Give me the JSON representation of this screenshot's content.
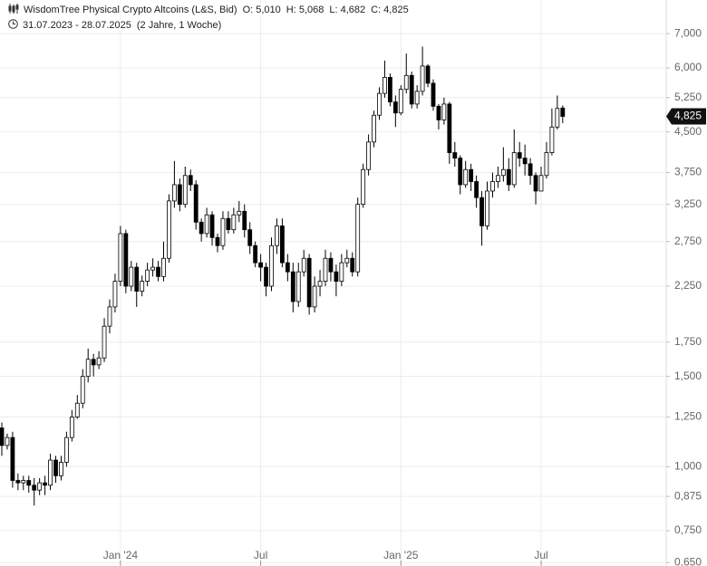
{
  "header": {
    "title": "WisdomTree Physical Crypto Altcoins (L&S, Bid)",
    "open": "O: 5,010",
    "high": "H: 5,068",
    "low": "L: 4,682",
    "close": "C: 4,825",
    "range": "31.07.2023 - 28.07.2025",
    "duration": "(2 Jahre, 1 Woche)"
  },
  "chart_data": {
    "type": "candlestick",
    "log_scale": true,
    "grid": true,
    "up_color": "#ffffff",
    "down_color": "#000000",
    "line_color": "#000000",
    "ylim": [
      0.64,
      8.14
    ],
    "yticks": [
      {
        "value": 0.65,
        "label": "0,650"
      },
      {
        "value": 0.75,
        "label": "0,750"
      },
      {
        "value": 0.875,
        "label": "0,875"
      },
      {
        "value": 1,
        "label": "1,000"
      },
      {
        "value": 1.25,
        "label": "1,250"
      },
      {
        "value": 1.5,
        "label": "1,500"
      },
      {
        "value": 1.75,
        "label": "1,750"
      },
      {
        "value": 2.25,
        "label": "2,250"
      },
      {
        "value": 2.75,
        "label": "2,750"
      },
      {
        "value": 3.25,
        "label": "3,250"
      },
      {
        "value": 3.75,
        "label": "3,750"
      },
      {
        "value": 4.5,
        "label": "4,500"
      },
      {
        "value": 5.25,
        "label": "5,250"
      },
      {
        "value": 6,
        "label": "6,000"
      },
      {
        "value": 7,
        "label": "7,000"
      }
    ],
    "categories": [
      null,
      null,
      null,
      null,
      null,
      null,
      null,
      null,
      null,
      null,
      null,
      null,
      null,
      null,
      null,
      null,
      null,
      null,
      null,
      null,
      null,
      null,
      "Jan '24",
      null,
      null,
      null,
      null,
      null,
      null,
      null,
      null,
      null,
      null,
      null,
      null,
      null,
      null,
      null,
      null,
      null,
      null,
      null,
      null,
      null,
      null,
      null,
      null,
      null,
      "Jul",
      null,
      null,
      null,
      null,
      null,
      null,
      null,
      null,
      null,
      null,
      null,
      null,
      null,
      null,
      null,
      null,
      null,
      null,
      null,
      null,
      null,
      null,
      null,
      null,
      null,
      "Jan '25",
      null,
      null,
      null,
      null,
      null,
      null,
      null,
      null,
      null,
      null,
      null,
      null,
      null,
      null,
      null,
      null,
      null,
      null,
      null,
      null,
      null,
      null,
      null,
      null,
      null,
      "Jul",
      null,
      null,
      null,
      null
    ],
    "open": [
      1.19,
      1.1,
      1.14,
      0.94,
      0.93,
      0.94,
      0.92,
      0.9,
      0.93,
      0.92,
      1.03,
      0.96,
      1.02,
      1.14,
      1.25,
      1.33,
      1.5,
      1.62,
      1.58,
      1.63,
      1.88,
      2.05,
      2.3,
      2.85,
      2.25,
      2.45,
      2.2,
      2.3,
      2.42,
      2.45,
      2.35,
      2.55,
      3.3,
      3.55,
      3.25,
      3.7,
      3.55,
      3.0,
      2.85,
      3.1,
      2.8,
      2.7,
      3.05,
      2.9,
      3.1,
      3.15,
      2.9,
      2.7,
      2.5,
      2.45,
      2.25,
      2.7,
      2.95,
      2.5,
      2.4,
      2.1,
      2.4,
      2.55,
      2.05,
      2.25,
      2.3,
      2.55,
      2.4,
      2.3,
      2.5,
      2.55,
      2.4,
      3.25,
      3.8,
      4.3,
      4.85,
      5.35,
      5.75,
      5.15,
      4.9,
      5.45,
      5.8,
      5.1,
      5.4,
      6.05,
      5.6,
      5.05,
      4.75,
      5.1,
      4.1,
      4.0,
      3.55,
      3.8,
      3.6,
      3.35,
      2.95,
      3.45,
      3.6,
      3.7,
      3.8,
      3.55,
      4.1,
      4.0,
      3.9,
      3.7,
      3.45,
      3.7,
      4.1,
      4.6,
      5.01
    ],
    "high": [
      1.22,
      1.16,
      1.17,
      0.97,
      0.96,
      0.96,
      0.95,
      0.95,
      0.96,
      1.06,
      1.05,
      1.05,
      1.17,
      1.29,
      1.38,
      1.55,
      1.7,
      1.66,
      1.68,
      1.95,
      2.12,
      2.38,
      2.95,
      2.9,
      2.52,
      2.5,
      2.36,
      2.5,
      2.55,
      2.52,
      2.75,
      3.4,
      3.95,
      3.65,
      3.85,
      3.8,
      3.62,
      3.05,
      3.2,
      3.15,
      2.85,
      3.15,
      3.15,
      3.2,
      3.3,
      3.25,
      3.0,
      2.75,
      2.6,
      2.5,
      2.8,
      3.05,
      3.05,
      2.6,
      2.5,
      2.5,
      2.65,
      2.6,
      2.35,
      2.42,
      2.65,
      2.62,
      2.48,
      2.6,
      2.65,
      2.62,
      3.35,
      3.9,
      4.45,
      4.95,
      5.5,
      6.2,
      5.85,
      5.3,
      5.55,
      6.4,
      5.9,
      5.55,
      6.6,
      6.1,
      5.7,
      5.1,
      5.25,
      5.15,
      4.3,
      4.05,
      3.95,
      3.9,
      3.7,
      3.45,
      3.6,
      3.75,
      3.85,
      4.2,
      4.0,
      4.55,
      4.3,
      4.25,
      4.0,
      3.75,
      3.85,
      4.3,
      5.0,
      5.3,
      5.068
    ],
    "low": [
      1.05,
      1.08,
      0.91,
      0.9,
      0.9,
      0.89,
      0.84,
      0.88,
      0.88,
      0.9,
      0.93,
      0.94,
      1.0,
      1.12,
      1.24,
      1.3,
      1.46,
      1.5,
      1.55,
      1.6,
      1.82,
      2.0,
      2.25,
      2.18,
      2.2,
      2.05,
      2.15,
      2.25,
      2.35,
      2.3,
      2.3,
      2.5,
      3.2,
      3.15,
      3.2,
      3.45,
      2.9,
      2.75,
      2.8,
      2.7,
      2.62,
      2.65,
      2.85,
      2.85,
      3.0,
      2.8,
      2.6,
      2.45,
      2.3,
      2.15,
      2.2,
      2.6,
      2.45,
      2.3,
      2.0,
      2.05,
      2.35,
      1.98,
      2.0,
      2.15,
      2.25,
      2.3,
      2.15,
      2.25,
      2.45,
      2.35,
      2.35,
      3.2,
      3.7,
      4.2,
      4.75,
      5.25,
      5.05,
      4.6,
      4.85,
      5.35,
      5.0,
      5.0,
      5.3,
      5.5,
      4.95,
      4.55,
      4.65,
      3.9,
      3.85,
      3.4,
      3.5,
      3.45,
      3.2,
      2.7,
      2.9,
      3.35,
      3.5,
      3.6,
      3.45,
      3.5,
      3.85,
      3.7,
      3.55,
      3.25,
      3.45,
      3.65,
      4.05,
      4.55,
      4.682
    ],
    "close": [
      1.1,
      1.14,
      0.94,
      0.93,
      0.94,
      0.92,
      0.9,
      0.93,
      0.92,
      1.03,
      0.96,
      1.02,
      1.14,
      1.25,
      1.33,
      1.5,
      1.62,
      1.58,
      1.63,
      1.88,
      2.05,
      2.3,
      2.85,
      2.25,
      2.45,
      2.2,
      2.3,
      2.42,
      2.45,
      2.35,
      2.55,
      3.3,
      3.55,
      3.25,
      3.7,
      3.55,
      3.0,
      2.85,
      3.1,
      2.8,
      2.7,
      3.05,
      2.9,
      3.1,
      3.15,
      2.9,
      2.7,
      2.5,
      2.45,
      2.25,
      2.7,
      2.95,
      2.5,
      2.4,
      2.1,
      2.4,
      2.55,
      2.05,
      2.25,
      2.3,
      2.55,
      2.4,
      2.3,
      2.5,
      2.55,
      2.4,
      3.25,
      3.8,
      4.3,
      4.85,
      5.35,
      5.75,
      5.15,
      4.9,
      5.45,
      5.8,
      5.1,
      5.4,
      6.05,
      5.6,
      5.05,
      4.75,
      5.1,
      4.1,
      4.0,
      3.55,
      3.8,
      3.6,
      3.35,
      2.95,
      3.45,
      3.6,
      3.7,
      3.8,
      3.55,
      4.1,
      4.0,
      3.9,
      3.7,
      3.45,
      3.7,
      4.1,
      4.6,
      5.0,
      4.825
    ],
    "last_price": {
      "value": 4.825,
      "label": "4,825"
    }
  }
}
